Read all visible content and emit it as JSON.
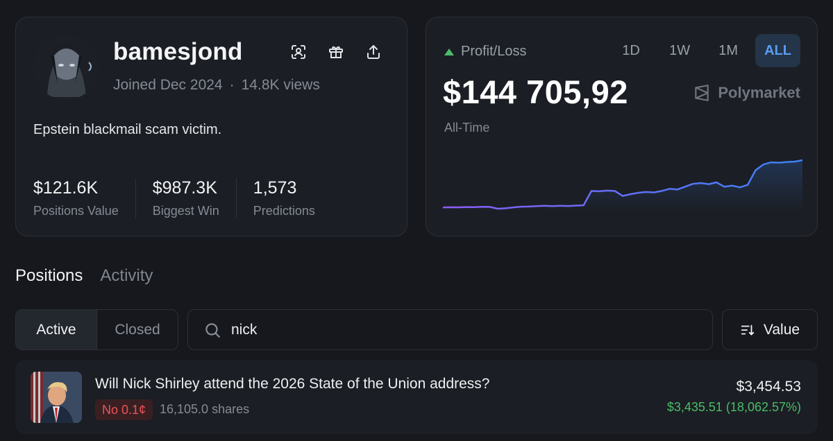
{
  "profile": {
    "username": "bamesjond",
    "joined": "Joined Dec 2024",
    "separator": "·",
    "views": "14.8K views",
    "bio": "Epstein blackmail scam victim.",
    "actions": [
      {
        "icon": "scan-icon"
      },
      {
        "icon": "gift-icon"
      },
      {
        "icon": "share-icon"
      }
    ],
    "stats": [
      {
        "value": "$121.6K",
        "label": "Positions Value"
      },
      {
        "value": "$987.3K",
        "label": "Biggest Win"
      },
      {
        "value": "1,573",
        "label": "Predictions"
      }
    ]
  },
  "pnl": {
    "label": "Profit/Loss",
    "value": "$144 705,92",
    "sub": "All-Time",
    "brand": "Polymarket",
    "ranges": [
      "1D",
      "1W",
      "1M",
      "ALL"
    ],
    "active_range": "ALL",
    "up_color": "#4cbc6a"
  },
  "chart_data": {
    "type": "line",
    "title": "",
    "xlabel": "",
    "ylabel": "",
    "grid": false,
    "legend": "none",
    "series": [
      {
        "values": [
          0,
          0.2,
          0.1,
          0.5,
          0.3,
          0.9,
          0.7,
          -1.8,
          -1.2,
          0.0,
          1.0,
          1.2,
          1.8,
          2.3,
          1.9,
          2.4,
          2.0,
          2.6,
          3.0,
          23.0,
          22.5,
          23.5,
          23.0,
          16.0,
          18.5,
          20.5,
          21.5,
          21.0,
          23.0,
          26.0,
          25.0,
          29.0,
          33.0,
          34.0,
          32.5,
          35.0,
          29.0,
          30.5,
          28.0,
          31.5,
          52.0,
          60.0,
          63.0,
          62.5,
          63.5,
          64.0,
          66.0
        ],
        "color_start": "#8b5cf6",
        "color_end": "#3b82f6"
      }
    ]
  },
  "tabs": [
    "Positions",
    "Activity"
  ],
  "filters": {
    "segments": [
      "Active",
      "Closed"
    ],
    "search_value": "nick",
    "sort_label": "Value"
  },
  "position": {
    "title": "Will Nick Shirley attend the 2026 State of the Union address?",
    "badge": "No 0.1¢",
    "shares": "16,105.0 shares",
    "value": "$3,454.53",
    "gain": "$3,435.51 (18,062.57%)"
  }
}
